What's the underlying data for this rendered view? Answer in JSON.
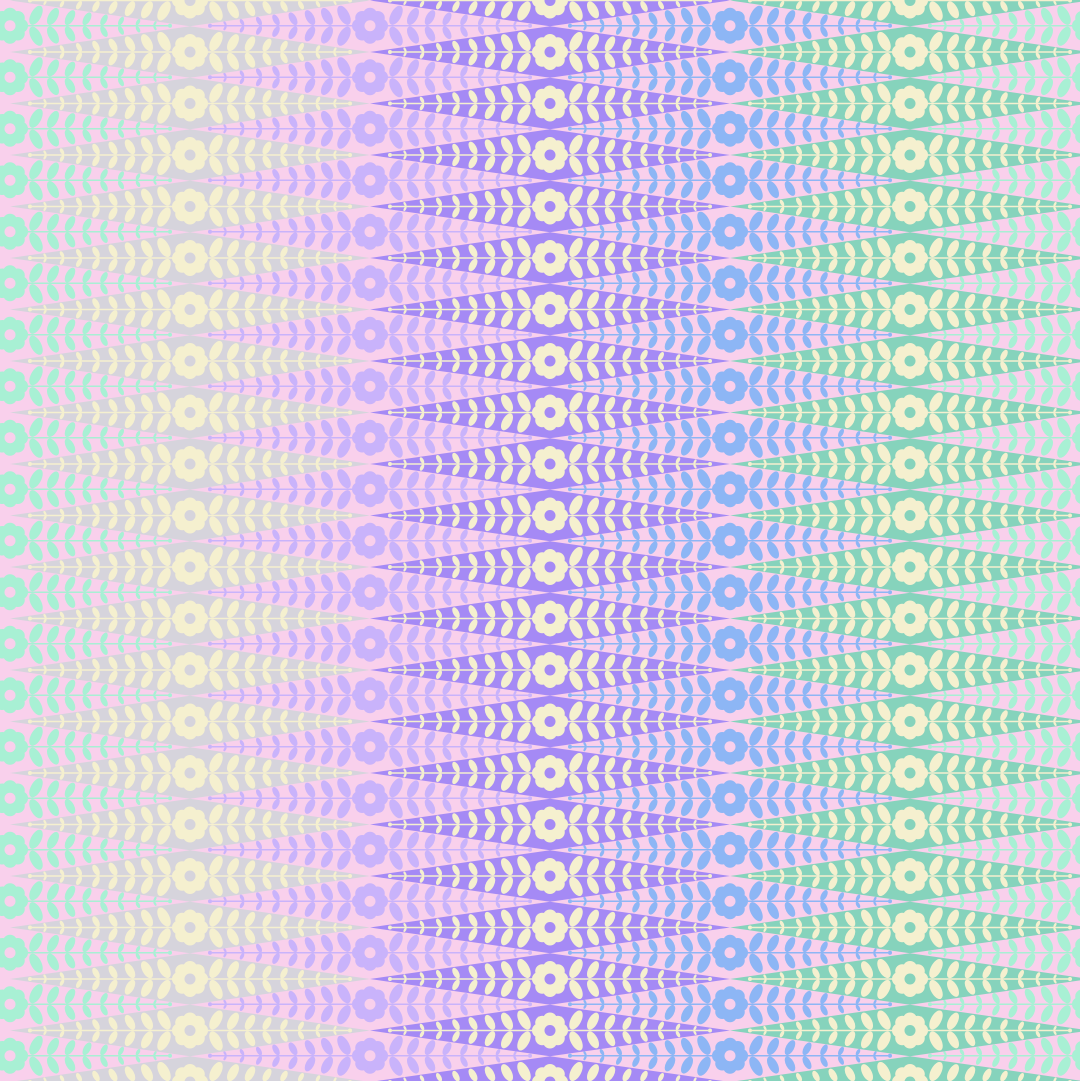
{
  "pattern": {
    "background": "#f9d0ec",
    "motif_color": "#f5f0cf",
    "diamond_columns": [
      {
        "diamond": "#d6d4dc",
        "icon": "flower-icon"
      },
      {
        "diamond": "#a58af5",
        "icon": "flower-icon"
      },
      {
        "diamond": "#86d3bc",
        "icon": "flower-icon"
      }
    ],
    "offset_columns": [
      {
        "color": "#a8f0d4",
        "icon": "flower-icon"
      },
      {
        "color": "#c9b3fb",
        "icon": "flower-icon"
      },
      {
        "color": "#8db6f5",
        "icon": "flower-icon"
      },
      {
        "color": "#a8f0d4",
        "icon": "flower-icon"
      }
    ],
    "leaf_icon": "leaf-branch-icon"
  }
}
